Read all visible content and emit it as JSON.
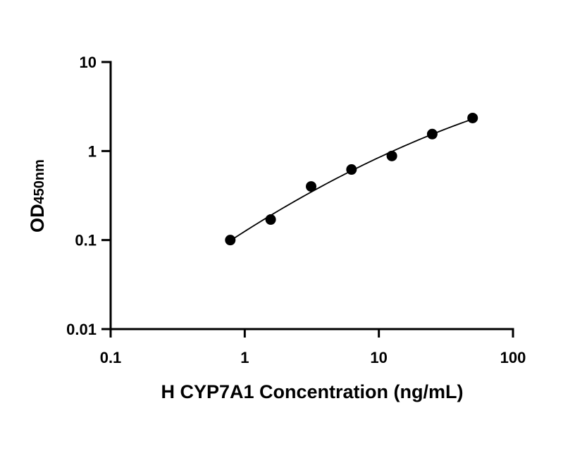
{
  "chart_data": {
    "type": "scatter",
    "title": "",
    "xlabel": "H CYP7A1 Concentration (ng/mL)",
    "ylabel": {
      "main": "OD",
      "subscript": "450nm"
    },
    "x_scale": "log",
    "y_scale": "log",
    "xlim": [
      0.1,
      100
    ],
    "ylim": [
      0.01,
      10
    ],
    "x_ticks": [
      "0.1",
      "1",
      "10",
      "100"
    ],
    "y_ticks": [
      "0.01",
      "0.1",
      "1",
      "10"
    ],
    "grid": false,
    "legend": "none",
    "series": [
      {
        "x": [
          0.78,
          1.56,
          3.125,
          6.25,
          12.5,
          25,
          50
        ],
        "y": [
          0.1,
          0.17,
          0.4,
          0.62,
          0.88,
          1.55,
          2.35
        ],
        "color": "#000000",
        "marker": "filled-circle",
        "fit_curve": true
      }
    ]
  }
}
